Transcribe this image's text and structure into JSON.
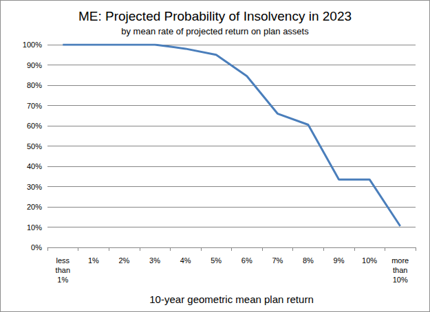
{
  "chart_data": {
    "type": "line",
    "title": "ME: Projected Probability of Insolvency in 2023",
    "subtitle": "by mean rate of projected return on plan assets",
    "x_label": "10-year geometric mean plan return",
    "categories": [
      "less than 1%",
      "1%",
      "2%",
      "3%",
      "4%",
      "5%",
      "6%",
      "7%",
      "8%",
      "9%",
      "10%",
      "more than 10%"
    ],
    "values": [
      100,
      100,
      100,
      100,
      98,
      95,
      84.5,
      66,
      60.5,
      33.5,
      33.5,
      10.5
    ],
    "color": "#4a7ebb",
    "ylim": [
      0,
      100
    ],
    "yticks": [
      {
        "value": 0,
        "label": "0%"
      },
      {
        "value": 10,
        "label": "10%"
      },
      {
        "value": 20,
        "label": "20%"
      },
      {
        "value": 30,
        "label": "30%"
      },
      {
        "value": 40,
        "label": "40%"
      },
      {
        "value": 50,
        "label": "50%"
      },
      {
        "value": 60,
        "label": "60%"
      },
      {
        "value": 70,
        "label": "70%"
      },
      {
        "value": 80,
        "label": "80%"
      },
      {
        "value": 90,
        "label": "90%"
      },
      {
        "value": 100,
        "label": "100%"
      }
    ],
    "grid": true
  }
}
